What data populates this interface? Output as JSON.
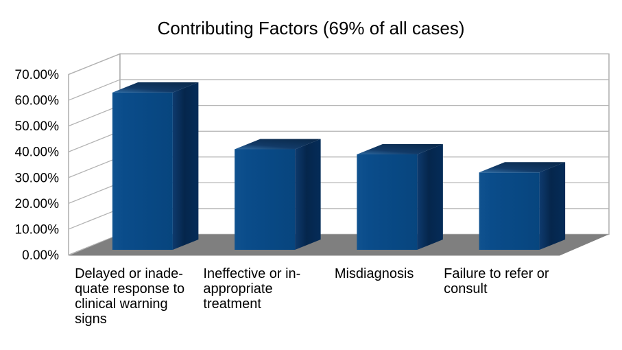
{
  "chart_data": {
    "type": "bar",
    "projection": "3d",
    "title": "Contributing Factors (69% of all cases)",
    "categories": [
      "Delayed or inadequate response to clinical warning signs",
      "Ineffective or inappropriate treatment",
      "Misdiagnosis",
      "Failure to refer or consult"
    ],
    "values": [
      61,
      39,
      37,
      30
    ],
    "unit": "%",
    "xlabel": "",
    "ylabel": "",
    "ylim": [
      0,
      70
    ],
    "ytick_step": 10,
    "ytick_labels": [
      "0.00%",
      "10.00%",
      "20.00%",
      "30.00%",
      "40.00%",
      "50.00%",
      "60.00%",
      "70.00%"
    ],
    "xtick_label_lines": [
      [
        "Delayed or inade-",
        "quate response to",
        "clinical warning",
        "signs"
      ],
      [
        "Ineffective or in-",
        "appropriate",
        "treatment"
      ],
      [
        "Misdiagnosis"
      ],
      [
        "Failure to refer or",
        "consult"
      ]
    ],
    "grid": true,
    "legend": "none",
    "colors": {
      "bar_front_light": "#10528f",
      "bar_front": "#0a4c8a",
      "bar_front_dark": "#07457e",
      "bar_top_light": "#2f6ba2",
      "bar_top_mid": "#123a67",
      "bar_top_dark": "#0a2a4d",
      "bar_side_light": "#0e3a6d",
      "bar_side_mid": "#05264c",
      "bar_side_dark": "#052c58",
      "floor": "#7f7f7f",
      "wall": "#ffffff",
      "gridline": "#b3b3b3",
      "wall_border": "#a0a0a0",
      "background": "#ffffff",
      "text": "#000000"
    }
  }
}
